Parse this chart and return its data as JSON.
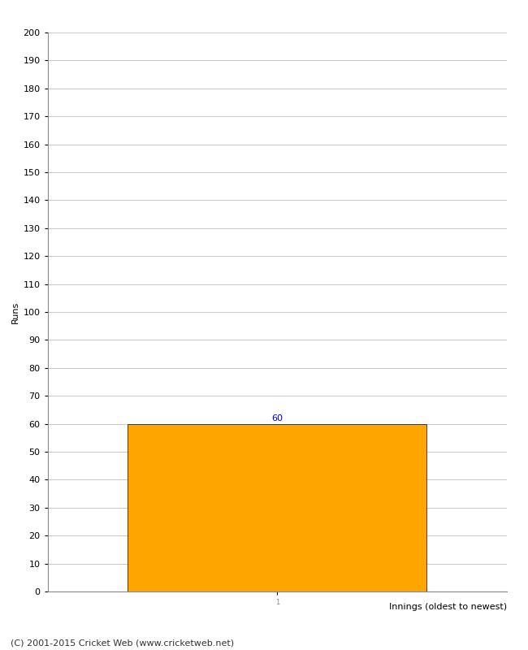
{
  "categories": [
    "1"
  ],
  "values": [
    60
  ],
  "bar_color": "#FFA500",
  "bar_edge_color": "#000000",
  "bar_edge_width": 0.5,
  "title": "",
  "ylabel": "Runs",
  "xlabel": "Innings (oldest to newest)",
  "ylim": [
    0,
    200
  ],
  "yticks": [
    0,
    10,
    20,
    30,
    40,
    50,
    60,
    70,
    80,
    90,
    100,
    110,
    120,
    130,
    140,
    150,
    160,
    170,
    180,
    190,
    200
  ],
  "annotation_color": "#0000CC",
  "annotation_fontsize": 8,
  "footer_text": "(C) 2001-2015 Cricket Web (www.cricketweb.net)",
  "footer_fontsize": 8,
  "xlabel_fontsize": 8,
  "ylabel_fontsize": 8,
  "tick_fontsize": 8,
  "background_color": "#ffffff",
  "grid_color": "#cccccc",
  "spine_color": "#888888"
}
